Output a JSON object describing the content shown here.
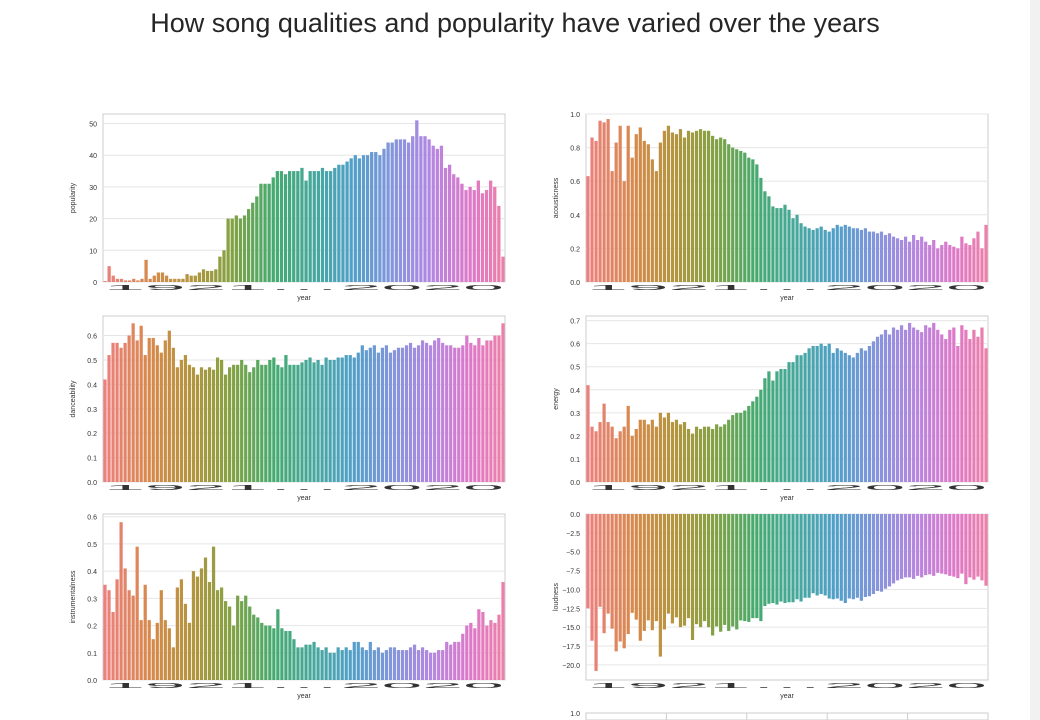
{
  "page": {
    "title": "How song qualities and popularity have varied over the years"
  },
  "chart_data": [
    {
      "type": "bar",
      "xlabel": "year",
      "ylabel": "popularity",
      "ylim": [
        0,
        53
      ],
      "yticks": [
        0,
        10,
        20,
        30,
        40,
        50
      ],
      "ytick_labels": [
        "0",
        "10",
        "20",
        "30",
        "40",
        "50"
      ],
      "xtick_label_note": "1921…2020 (tick labels overlap)",
      "values": [
        0.3,
        5,
        2,
        1,
        1,
        0.5,
        0.5,
        1,
        0.5,
        1,
        7,
        1,
        2,
        3,
        3,
        2,
        1,
        1,
        1,
        1,
        2.5,
        2,
        2,
        3,
        4,
        3.5,
        3.5,
        4,
        8,
        10,
        20,
        20,
        21,
        20,
        21,
        23,
        25,
        27,
        31,
        31,
        31,
        33,
        35,
        35,
        34,
        35,
        35,
        35,
        36,
        32,
        35,
        35,
        35,
        36,
        35,
        35,
        36,
        37,
        37,
        38,
        39,
        40,
        39,
        40,
        40,
        41,
        41,
        40,
        42,
        44,
        44,
        45,
        45,
        45,
        44,
        46,
        51,
        46,
        46,
        45,
        43,
        42,
        43,
        36,
        37,
        34,
        33,
        31,
        29,
        30,
        29,
        32,
        28,
        29,
        32,
        30,
        24,
        8
      ]
    },
    {
      "type": "bar",
      "xlabel": "year",
      "ylabel": "acousticness",
      "ylim": [
        0,
        1.0
      ],
      "yticks": [
        0,
        0.2,
        0.4,
        0.6,
        0.8,
        1.0
      ],
      "ytick_labels": [
        "0.0",
        "0.2",
        "0.4",
        "0.6",
        "0.8",
        "1.0"
      ],
      "xtick_label_note": "1921…2020 (tick labels overlap)",
      "values": [
        0.63,
        0.86,
        0.84,
        0.96,
        0.95,
        0.97,
        0.66,
        0.83,
        0.93,
        0.6,
        0.93,
        0.74,
        0.88,
        0.92,
        0.84,
        0.82,
        0.73,
        0.66,
        0.83,
        0.9,
        0.93,
        0.89,
        0.88,
        0.91,
        0.86,
        0.9,
        0.89,
        0.9,
        0.91,
        0.9,
        0.9,
        0.87,
        0.85,
        0.86,
        0.85,
        0.82,
        0.8,
        0.79,
        0.78,
        0.77,
        0.74,
        0.73,
        0.7,
        0.62,
        0.54,
        0.51,
        0.45,
        0.44,
        0.44,
        0.46,
        0.43,
        0.38,
        0.4,
        0.35,
        0.33,
        0.32,
        0.31,
        0.32,
        0.33,
        0.31,
        0.3,
        0.32,
        0.34,
        0.33,
        0.34,
        0.33,
        0.32,
        0.32,
        0.31,
        0.32,
        0.3,
        0.3,
        0.29,
        0.3,
        0.28,
        0.29,
        0.27,
        0.26,
        0.25,
        0.27,
        0.24,
        0.28,
        0.25,
        0.27,
        0.24,
        0.22,
        0.25,
        0.2,
        0.22,
        0.24,
        0.22,
        0.21,
        0.2,
        0.27,
        0.23,
        0.22,
        0.26,
        0.3,
        0.2,
        0.34
      ]
    },
    {
      "type": "bar",
      "xlabel": "year",
      "ylabel": "danceability",
      "ylim": [
        0,
        0.68
      ],
      "yticks": [
        0,
        0.1,
        0.2,
        0.3,
        0.4,
        0.5,
        0.6
      ],
      "ytick_labels": [
        "0.0",
        "0.1",
        "0.2",
        "0.3",
        "0.4",
        "0.5",
        "0.6"
      ],
      "xtick_label_note": "1921…2020 (tick labels overlap)",
      "values": [
        0.42,
        0.52,
        0.57,
        0.57,
        0.55,
        0.57,
        0.6,
        0.65,
        0.58,
        0.64,
        0.52,
        0.59,
        0.59,
        0.56,
        0.53,
        0.58,
        0.62,
        0.55,
        0.47,
        0.5,
        0.52,
        0.48,
        0.47,
        0.44,
        0.47,
        0.46,
        0.47,
        0.46,
        0.51,
        0.5,
        0.44,
        0.47,
        0.48,
        0.48,
        0.5,
        0.48,
        0.45,
        0.47,
        0.5,
        0.48,
        0.48,
        0.5,
        0.51,
        0.48,
        0.47,
        0.52,
        0.48,
        0.48,
        0.48,
        0.49,
        0.5,
        0.51,
        0.49,
        0.5,
        0.48,
        0.51,
        0.5,
        0.5,
        0.51,
        0.51,
        0.52,
        0.52,
        0.51,
        0.53,
        0.56,
        0.54,
        0.55,
        0.56,
        0.53,
        0.55,
        0.56,
        0.53,
        0.54,
        0.55,
        0.55,
        0.56,
        0.57,
        0.55,
        0.56,
        0.58,
        0.57,
        0.56,
        0.58,
        0.59,
        0.57,
        0.56,
        0.56,
        0.55,
        0.55,
        0.56,
        0.6,
        0.57,
        0.56,
        0.59,
        0.56,
        0.58,
        0.58,
        0.6,
        0.6,
        0.65
      ]
    },
    {
      "type": "bar",
      "xlabel": "year",
      "ylabel": "energy",
      "ylim": [
        0,
        0.72
      ],
      "yticks": [
        0,
        0.1,
        0.2,
        0.3,
        0.4,
        0.5,
        0.6,
        0.7
      ],
      "ytick_labels": [
        "0.0",
        "0.1",
        "0.2",
        "0.3",
        "0.4",
        "0.5",
        "0.6",
        "0.7"
      ],
      "xtick_label_note": "1921…2020 (tick labels overlap)",
      "values": [
        0.42,
        0.24,
        0.22,
        0.26,
        0.34,
        0.26,
        0.24,
        0.19,
        0.22,
        0.24,
        0.33,
        0.2,
        0.23,
        0.27,
        0.27,
        0.25,
        0.27,
        0.24,
        0.3,
        0.28,
        0.3,
        0.26,
        0.27,
        0.25,
        0.26,
        0.23,
        0.21,
        0.24,
        0.23,
        0.24,
        0.24,
        0.23,
        0.25,
        0.24,
        0.25,
        0.27,
        0.29,
        0.3,
        0.3,
        0.31,
        0.33,
        0.35,
        0.37,
        0.4,
        0.45,
        0.48,
        0.44,
        0.48,
        0.49,
        0.49,
        0.52,
        0.52,
        0.55,
        0.55,
        0.56,
        0.58,
        0.59,
        0.59,
        0.6,
        0.59,
        0.6,
        0.56,
        0.58,
        0.57,
        0.56,
        0.55,
        0.54,
        0.56,
        0.58,
        0.57,
        0.59,
        0.61,
        0.63,
        0.64,
        0.66,
        0.64,
        0.67,
        0.66,
        0.68,
        0.66,
        0.69,
        0.67,
        0.66,
        0.65,
        0.68,
        0.67,
        0.69,
        0.66,
        0.64,
        0.62,
        0.66,
        0.67,
        0.59,
        0.68,
        0.66,
        0.62,
        0.66,
        0.63,
        0.67,
        0.58
      ]
    },
    {
      "type": "bar",
      "xlabel": "year",
      "ylabel": "instrumentalness",
      "ylim": [
        0,
        0.61
      ],
      "yticks": [
        0,
        0.1,
        0.2,
        0.3,
        0.4,
        0.5,
        0.6
      ],
      "ytick_labels": [
        "0.0",
        "0.1",
        "0.2",
        "0.3",
        "0.4",
        "0.5",
        "0.6"
      ],
      "xtick_label_note": "1921…2020 (tick labels overlap)",
      "values": [
        0.35,
        0.33,
        0.25,
        0.37,
        0.58,
        0.41,
        0.33,
        0.31,
        0.49,
        0.22,
        0.35,
        0.22,
        0.15,
        0.21,
        0.33,
        0.22,
        0.19,
        0.12,
        0.34,
        0.37,
        0.28,
        0.21,
        0.4,
        0.38,
        0.41,
        0.45,
        0.36,
        0.49,
        0.33,
        0.34,
        0.29,
        0.27,
        0.2,
        0.31,
        0.29,
        0.31,
        0.27,
        0.24,
        0.23,
        0.21,
        0.2,
        0.2,
        0.19,
        0.26,
        0.19,
        0.18,
        0.18,
        0.15,
        0.12,
        0.12,
        0.13,
        0.13,
        0.14,
        0.12,
        0.11,
        0.12,
        0.1,
        0.1,
        0.12,
        0.11,
        0.12,
        0.11,
        0.14,
        0.14,
        0.12,
        0.11,
        0.14,
        0.11,
        0.12,
        0.1,
        0.11,
        0.12,
        0.12,
        0.11,
        0.11,
        0.11,
        0.12,
        0.13,
        0.11,
        0.12,
        0.11,
        0.1,
        0.1,
        0.11,
        0.11,
        0.14,
        0.13,
        0.14,
        0.14,
        0.17,
        0.2,
        0.21,
        0.19,
        0.26,
        0.25,
        0.2,
        0.22,
        0.21,
        0.24,
        0.36
      ]
    },
    {
      "type": "bar",
      "xlabel": "year",
      "ylabel": "loudness",
      "ylim": [
        -22,
        0
      ],
      "yticks": [
        0,
        -2.5,
        -5,
        -7.5,
        -10,
        -12.5,
        -15,
        -17.5,
        -20
      ],
      "ytick_labels": [
        "0.0",
        "−2.5",
        "−5.0",
        "−7.5",
        "−10.0",
        "−12.5",
        "−15.0",
        "−17.5",
        "−20.0"
      ],
      "xtick_label_note": "1921…2020 (tick labels overlap)",
      "values": [
        -12.5,
        -16.8,
        -20.8,
        -12.3,
        -15.8,
        -13.2,
        -15.2,
        -18.2,
        -16.9,
        -17.8,
        -15.9,
        -13.1,
        -14,
        -16.8,
        -15.5,
        -14.1,
        -15.4,
        -14.2,
        -18.9,
        -15.3,
        -13.2,
        -14.5,
        -13.7,
        -15,
        -14.8,
        -13.8,
        -16.7,
        -14.6,
        -15,
        -14.2,
        -15,
        -16.1,
        -14.9,
        -15.6,
        -14.7,
        -15.5,
        -14.9,
        -15.3,
        -14.1,
        -14.2,
        -14.3,
        -13.8,
        -13.8,
        -14.2,
        -12.2,
        -11.9,
        -11.8,
        -12,
        -11.6,
        -11.8,
        -11.7,
        -11.7,
        -11.3,
        -11.6,
        -11.1,
        -11.1,
        -10.5,
        -10.8,
        -10.6,
        -10.8,
        -11.2,
        -11.3,
        -11.2,
        -11.5,
        -11.8,
        -11.2,
        -11.3,
        -11.1,
        -11.5,
        -11,
        -10.9,
        -10.6,
        -10.2,
        -10.3,
        -9.9,
        -9.6,
        -9.2,
        -8.8,
        -8.6,
        -8.4,
        -8.4,
        -8.6,
        -8.2,
        -8.4,
        -8.1,
        -8,
        -8.2,
        -7.8,
        -7.9,
        -8,
        -8.2,
        -8.3,
        -8.5,
        -7.9,
        -9.3,
        -8.4,
        -8.7,
        -8.3,
        -8.8,
        -9.5
      ]
    },
    {
      "type": "bar",
      "xlabel": "",
      "ylabel": "",
      "ylim": [
        0,
        1.0
      ],
      "yticks": [
        1.0
      ],
      "ytick_labels": [
        "1.0"
      ],
      "xtick_label_note": "",
      "values": []
    }
  ]
}
